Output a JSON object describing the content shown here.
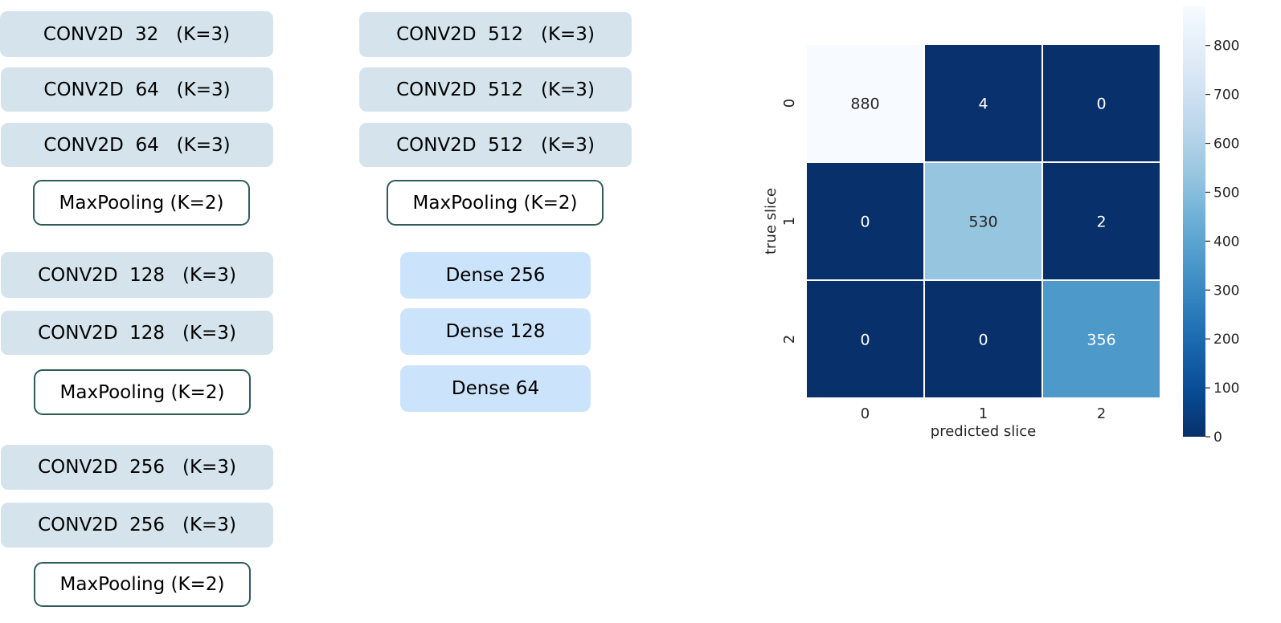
{
  "architecture": {
    "left_column": [
      {
        "label": "CONV2D  32   (K=3)",
        "kind": "conv"
      },
      {
        "label": "CONV2D  64   (K=3)",
        "kind": "conv"
      },
      {
        "label": "CONV2D  64   (K=3)",
        "kind": "conv"
      },
      {
        "label": "MaxPooling (K=2)",
        "kind": "pool"
      },
      {
        "label": "CONV2D  128   (K=3)",
        "kind": "conv"
      },
      {
        "label": "CONV2D  128   (K=3)",
        "kind": "conv"
      },
      {
        "label": "MaxPooling (K=2)",
        "kind": "pool"
      },
      {
        "label": "CONV2D  256   (K=3)",
        "kind": "conv"
      },
      {
        "label": "CONV2D  256   (K=3)",
        "kind": "conv"
      },
      {
        "label": "MaxPooling (K=2)",
        "kind": "pool"
      }
    ],
    "right_column": [
      {
        "label": "CONV2D  512   (K=3)",
        "kind": "conv"
      },
      {
        "label": "CONV2D  512   (K=3)",
        "kind": "conv"
      },
      {
        "label": "CONV2D  512   (K=3)",
        "kind": "conv"
      },
      {
        "label": "MaxPooling (K=2)",
        "kind": "pool"
      },
      {
        "label": "Dense 256",
        "kind": "dense"
      },
      {
        "label": "Dense 128",
        "kind": "dense"
      },
      {
        "label": "Dense 64",
        "kind": "dense"
      }
    ]
  },
  "chart_data": {
    "type": "heatmap",
    "title": "",
    "xlabel": "predicted slice",
    "ylabel": "true slice",
    "x_categories": [
      "0",
      "1",
      "2"
    ],
    "y_categories": [
      "0",
      "1",
      "2"
    ],
    "values": [
      [
        880,
        4,
        0
      ],
      [
        0,
        530,
        2
      ],
      [
        0,
        0,
        356
      ]
    ],
    "colormap": "Blues_r",
    "colorbar": {
      "min": 0,
      "max": 880,
      "ticks": [
        0,
        100,
        200,
        300,
        400,
        500,
        600,
        700,
        800
      ]
    },
    "cell_border_color": "#ffffff"
  }
}
